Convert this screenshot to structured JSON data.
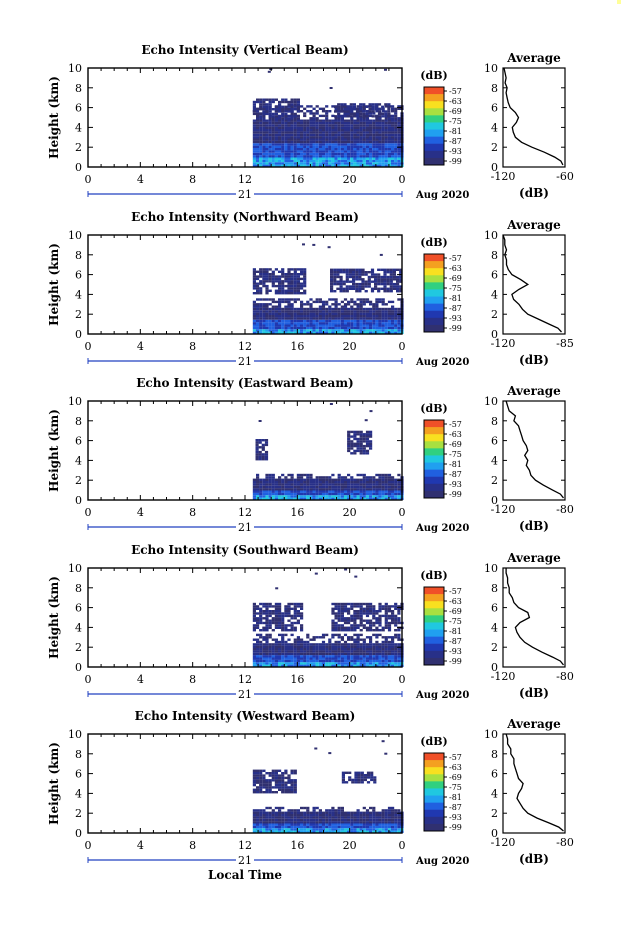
{
  "corner_color": "#ffff99",
  "colorbar": {
    "unit": "(dB)",
    "ticks": [
      "-57",
      "-63",
      "-69",
      "-75",
      "-81",
      "-87",
      "-93",
      "-99"
    ],
    "colors": [
      "#f05028",
      "#f4a020",
      "#f8e020",
      "#a8e040",
      "#30d080",
      "#20c8e0",
      "#20a0f0",
      "#2060e0",
      "#2038b0",
      "#283088",
      "#303070"
    ]
  },
  "x_axis": {
    "ticks": [
      "0",
      "4",
      "8",
      "12",
      "16",
      "20",
      "0"
    ],
    "day_label": "21",
    "month_label": "Aug 2020",
    "title": "Local Time"
  },
  "chart_data": [
    {
      "type": "heatmap",
      "title": "Echo Intensity (Vertical Beam)",
      "ylabel": "Height (km)",
      "xlabel": "Local Time",
      "xlim": [
        0,
        24
      ],
      "ylim": [
        0,
        10
      ],
      "y_ticks": [
        "0",
        "2",
        "4",
        "6",
        "8",
        "10"
      ],
      "data_start_hour": 12.6,
      "layers": [
        {
          "from_hour": 12.6,
          "to_hour": 24,
          "from_km": 0,
          "to_km": 6.2
        },
        {
          "from_hour": 12.6,
          "to_hour": 16.2,
          "from_km": 5.0,
          "to_km": 6.8
        },
        {
          "from_hour": 18.8,
          "to_hour": 23.0,
          "from_km": 5.0,
          "to_km": 6.4
        }
      ],
      "average": {
        "title": "Average",
        "xlabel": "(dB)",
        "xticks": [
          "-120",
          "-60"
        ],
        "xlim": [
          -120,
          -60
        ],
        "ylim": [
          0,
          10
        ],
        "y_ticks": [
          "0",
          "2",
          "4",
          "6",
          "8",
          "10"
        ],
        "profile": [
          [
            -62,
            0.2
          ],
          [
            -64,
            0.6
          ],
          [
            -70,
            1.0
          ],
          [
            -80,
            1.5
          ],
          [
            -92,
            2.0
          ],
          [
            -102,
            2.5
          ],
          [
            -108,
            3.0
          ],
          [
            -110,
            3.5
          ],
          [
            -111,
            4.0
          ],
          [
            -107,
            4.5
          ],
          [
            -105,
            5.0
          ],
          [
            -108,
            5.5
          ],
          [
            -113,
            6.0
          ],
          [
            -115,
            6.5
          ],
          [
            -116,
            7.0
          ],
          [
            -117,
            7.5
          ],
          [
            -116,
            8.0
          ],
          [
            -118,
            8.5
          ],
          [
            -117,
            9.0
          ],
          [
            -118,
            9.5
          ],
          [
            -119,
            10
          ]
        ]
      }
    },
    {
      "type": "heatmap",
      "title": "Echo Intensity (Northward Beam)",
      "ylabel": "Height (km)",
      "xlabel": "Local Time",
      "xlim": [
        0,
        24
      ],
      "ylim": [
        0,
        10
      ],
      "y_ticks": [
        "0",
        "2",
        "4",
        "6",
        "8",
        "10"
      ],
      "data_start_hour": 12.6,
      "layers": [
        {
          "from_hour": 12.6,
          "to_hour": 24,
          "from_km": 0,
          "to_km": 3.5
        },
        {
          "from_hour": 12.6,
          "to_hour": 16.5,
          "from_km": 4.0,
          "to_km": 6.6
        },
        {
          "from_hour": 18.5,
          "to_hour": 24,
          "from_km": 4.2,
          "to_km": 6.5
        }
      ],
      "average": {
        "title": "Average",
        "xlabel": "(dB)",
        "xticks": [
          "-120",
          "-85"
        ],
        "xlim": [
          -120,
          -85
        ],
        "ylim": [
          0,
          10
        ],
        "y_ticks": [
          "0",
          "2",
          "4",
          "6",
          "8",
          "10"
        ],
        "profile": [
          [
            -87,
            0.2
          ],
          [
            -89,
            0.6
          ],
          [
            -94,
            1.0
          ],
          [
            -100,
            1.5
          ],
          [
            -106,
            2.0
          ],
          [
            -109,
            2.5
          ],
          [
            -111,
            3.0
          ],
          [
            -114,
            3.5
          ],
          [
            -115,
            4.0
          ],
          [
            -111,
            4.5
          ],
          [
            -106,
            5.0
          ],
          [
            -110,
            5.5
          ],
          [
            -115,
            6.0
          ],
          [
            -117,
            6.5
          ],
          [
            -118,
            7.0
          ],
          [
            -118,
            7.5
          ],
          [
            -119,
            8.0
          ],
          [
            -118,
            8.5
          ],
          [
            -119,
            9.0
          ],
          [
            -119,
            9.5
          ],
          [
            -120,
            10
          ]
        ]
      }
    },
    {
      "type": "heatmap",
      "title": "Echo Intensity (Eastward Beam)",
      "ylabel": "Height (km)",
      "xlabel": "Local Time",
      "xlim": [
        0,
        24
      ],
      "ylim": [
        0,
        10
      ],
      "y_ticks": [
        "0",
        "2",
        "4",
        "6",
        "8",
        "10"
      ],
      "data_start_hour": 12.6,
      "layers": [
        {
          "from_hour": 12.6,
          "to_hour": 24,
          "from_km": 0,
          "to_km": 2.6
        },
        {
          "from_hour": 12.8,
          "to_hour": 13.6,
          "from_km": 4.0,
          "to_km": 6.0
        },
        {
          "from_hour": 19.8,
          "to_hour": 21.6,
          "from_km": 4.6,
          "to_km": 6.8
        }
      ],
      "average": {
        "title": "Average",
        "xlabel": "(dB)",
        "xticks": [
          "-120",
          "-80"
        ],
        "xlim": [
          -120,
          -80
        ],
        "ylim": [
          0,
          10
        ],
        "y_ticks": [
          "0",
          "2",
          "4",
          "6",
          "8",
          "10"
        ],
        "profile": [
          [
            -81,
            0.2
          ],
          [
            -83,
            0.6
          ],
          [
            -88,
            1.0
          ],
          [
            -94,
            1.5
          ],
          [
            -99,
            2.0
          ],
          [
            -102,
            2.5
          ],
          [
            -103,
            3.0
          ],
          [
            -105,
            3.5
          ],
          [
            -104,
            4.0
          ],
          [
            -106,
            4.5
          ],
          [
            -104,
            5.0
          ],
          [
            -105,
            5.5
          ],
          [
            -107,
            6.0
          ],
          [
            -108,
            6.5
          ],
          [
            -109,
            7.0
          ],
          [
            -110,
            7.5
          ],
          [
            -113,
            8.0
          ],
          [
            -112,
            8.5
          ],
          [
            -116,
            9.0
          ],
          [
            -117,
            9.5
          ],
          [
            -118,
            10
          ]
        ]
      }
    },
    {
      "type": "heatmap",
      "title": "Echo Intensity (Southward Beam)",
      "ylabel": "Height (km)",
      "xlabel": "Local Time",
      "xlim": [
        0,
        24
      ],
      "ylim": [
        0,
        10
      ],
      "y_ticks": [
        "0",
        "2",
        "4",
        "6",
        "8",
        "10"
      ],
      "data_start_hour": 12.6,
      "layers": [
        {
          "from_hour": 12.6,
          "to_hour": 24,
          "from_km": 0,
          "to_km": 3.2
        },
        {
          "from_hour": 12.6,
          "to_hour": 16.4,
          "from_km": 3.6,
          "to_km": 6.4
        },
        {
          "from_hour": 18.6,
          "to_hour": 24,
          "from_km": 3.6,
          "to_km": 6.4
        }
      ],
      "average": {
        "title": "Average",
        "xlabel": "(dB)",
        "xticks": [
          "-120",
          "-80"
        ],
        "xlim": [
          -120,
          -80
        ],
        "ylim": [
          0,
          10
        ],
        "y_ticks": [
          "0",
          "2",
          "4",
          "6",
          "8",
          "10"
        ],
        "profile": [
          [
            -81,
            0.2
          ],
          [
            -83,
            0.6
          ],
          [
            -88,
            1.0
          ],
          [
            -95,
            1.5
          ],
          [
            -101,
            2.0
          ],
          [
            -106,
            2.5
          ],
          [
            -109,
            3.0
          ],
          [
            -111,
            3.5
          ],
          [
            -112,
            4.0
          ],
          [
            -109,
            4.5
          ],
          [
            -103,
            5.0
          ],
          [
            -104,
            5.5
          ],
          [
            -110,
            6.0
          ],
          [
            -113,
            6.5
          ],
          [
            -114,
            7.0
          ],
          [
            -116,
            7.5
          ],
          [
            -116,
            8.0
          ],
          [
            -117,
            8.5
          ],
          [
            -117,
            9.0
          ],
          [
            -118,
            9.5
          ],
          [
            -118,
            10
          ]
        ]
      }
    },
    {
      "type": "heatmap",
      "title": "Echo Intensity (Westward Beam)",
      "ylabel": "Height (km)",
      "xlabel": "Local Time",
      "xlim": [
        0,
        24
      ],
      "ylim": [
        0,
        10
      ],
      "y_ticks": [
        "0",
        "2",
        "4",
        "6",
        "8",
        "10"
      ],
      "data_start_hour": 12.6,
      "layers": [
        {
          "from_hour": 12.6,
          "to_hour": 24,
          "from_km": 0,
          "to_km": 2.6
        },
        {
          "from_hour": 12.6,
          "to_hour": 15.8,
          "from_km": 4.0,
          "to_km": 6.2
        },
        {
          "from_hour": 19.4,
          "to_hour": 21.8,
          "from_km": 5.0,
          "to_km": 6.2
        }
      ],
      "average": {
        "title": "Average",
        "xlabel": "(dB)",
        "xticks": [
          "-120",
          "-80"
        ],
        "xlim": [
          -120,
          -80
        ],
        "ylim": [
          0,
          10
        ],
        "y_ticks": [
          "0",
          "2",
          "4",
          "6",
          "8",
          "10"
        ],
        "profile": [
          [
            -81,
            0.2
          ],
          [
            -84,
            0.6
          ],
          [
            -90,
            1.0
          ],
          [
            -98,
            1.5
          ],
          [
            -104,
            2.0
          ],
          [
            -107,
            2.5
          ],
          [
            -109,
            3.0
          ],
          [
            -111,
            3.5
          ],
          [
            -110,
            4.0
          ],
          [
            -108,
            4.5
          ],
          [
            -107,
            5.0
          ],
          [
            -110,
            5.5
          ],
          [
            -111,
            6.0
          ],
          [
            -112,
            6.5
          ],
          [
            -113,
            7.0
          ],
          [
            -113,
            7.5
          ],
          [
            -115,
            8.0
          ],
          [
            -115,
            8.5
          ],
          [
            -117,
            9.0
          ],
          [
            -117,
            9.5
          ],
          [
            -118,
            10
          ]
        ]
      }
    }
  ]
}
